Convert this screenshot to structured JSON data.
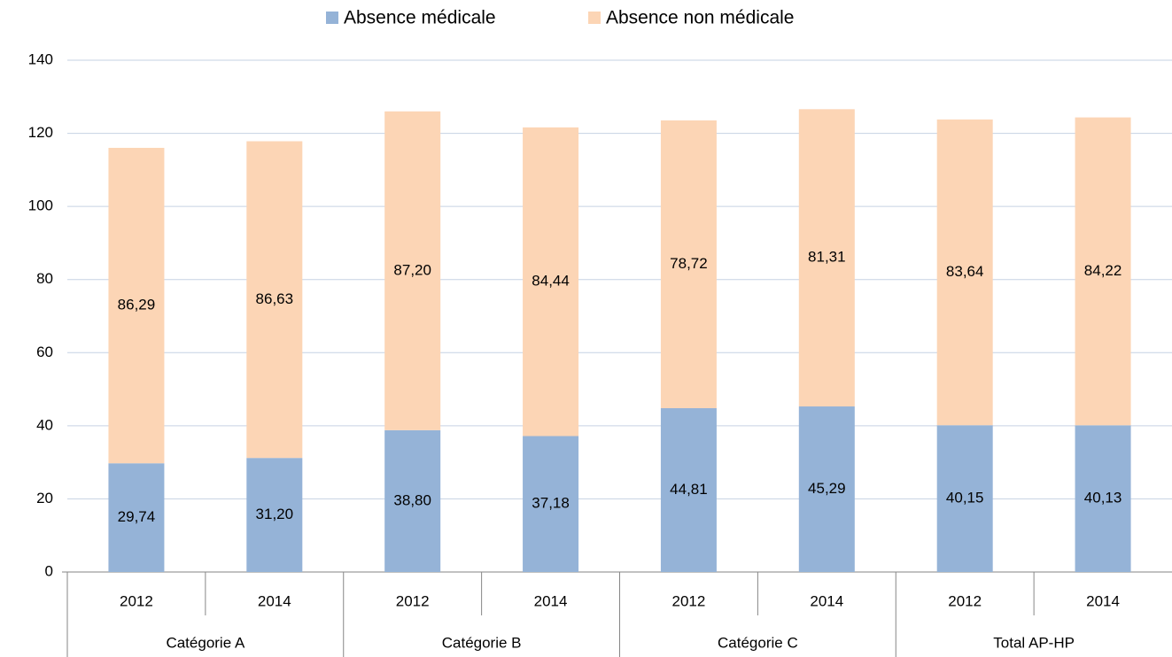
{
  "chart_data": {
    "type": "stacked_bar",
    "categories": [
      "2012",
      "2014",
      "2012",
      "2014",
      "2012",
      "2014",
      "2012",
      "2014"
    ],
    "groups": [
      "Catégorie A",
      "Catégorie B",
      "Catégorie C",
      "Total AP-HP"
    ],
    "series": [
      {
        "name": "Absence médicale",
        "color": "#95b3d7",
        "values": [
          29.74,
          31.2,
          38.8,
          37.18,
          44.81,
          45.29,
          40.15,
          40.13
        ],
        "value_labels": [
          "29,74",
          "31,20",
          "38,80",
          "37,18",
          "44,81",
          "45,29",
          "40,15",
          "40,13"
        ]
      },
      {
        "name": "Absence non médicale",
        "color": "#fcd5b5",
        "values": [
          86.29,
          86.63,
          87.2,
          84.44,
          78.72,
          81.31,
          83.64,
          84.22
        ],
        "value_labels": [
          "86,29",
          "86,63",
          "87,20",
          "84,44",
          "78,72",
          "81,31",
          "83,64",
          "84,22"
        ]
      }
    ],
    "ylim": [
      0,
      140
    ],
    "yticks": [
      0,
      20,
      40,
      60,
      80,
      100,
      120,
      140
    ],
    "grid": true,
    "legend": "top"
  }
}
